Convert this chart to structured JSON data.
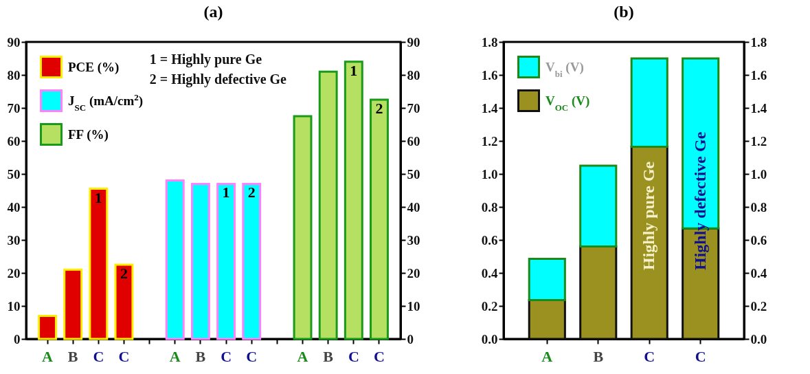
{
  "chart_data": [
    {
      "type": "bar",
      "title": "(a)",
      "categories": [
        "A",
        "B",
        "C",
        "C",
        null,
        "A",
        "B",
        "C",
        "C",
        null,
        "A",
        "B",
        "C",
        "C"
      ],
      "series": [
        {
          "name": "PCE (%)",
          "color": "#e00000",
          "values": [
            7,
            21,
            45.5,
            22.5,
            null,
            null,
            null,
            null,
            null,
            null,
            null,
            null,
            null,
            null
          ]
        },
        {
          "name": "J$_{SC}$ (mA/cm$^{2}$)",
          "color": "#00ffff",
          "values": [
            null,
            null,
            null,
            null,
            null,
            48,
            47,
            47,
            47,
            null,
            null,
            null,
            null,
            null
          ]
        },
        {
          "name": "FF (%)",
          "color": "#b5e061",
          "values": [
            null,
            null,
            null,
            null,
            null,
            null,
            null,
            null,
            null,
            null,
            67.5,
            81,
            84,
            72.5
          ]
        }
      ],
      "ylim": [
        0,
        90
      ],
      "yticks": [
        0,
        10,
        20,
        30,
        40,
        50,
        60,
        70,
        80,
        90
      ],
      "y2lim": [
        0,
        90
      ],
      "y2ticks": [
        0,
        10,
        20,
        30,
        40,
        50,
        60,
        70,
        80,
        90
      ],
      "legend": "top left",
      "annotations": [
        "1 = Highly pure Ge",
        "2 = Highly defective Ge",
        "1",
        "2",
        "1",
        "2",
        "1",
        "2"
      ]
    },
    {
      "type": "bar",
      "title": "(b)",
      "categories": [
        "A",
        "B",
        "C",
        "C"
      ],
      "stacked": true,
      "series": [
        {
          "name": "V$_{OC}$ (V)",
          "color": "#9a9120",
          "values": [
            0.235,
            0.56,
            1.165,
            0.67
          ]
        },
        {
          "name": "V$_{bi}$ (V)",
          "color": "#00ffff",
          "values": [
            0.25,
            0.49,
            0.535,
            1.03
          ]
        }
      ],
      "ylim": [
        0,
        1.8
      ],
      "yticks": [
        {
          "value": 0,
          "label": "0.0"
        },
        {
          "value": 0.2,
          "label": "0.2"
        },
        {
          "value": 0.4,
          "label": "0.4"
        },
        {
          "value": 0.6,
          "label": "0.6"
        },
        {
          "value": 0.8,
          "label": "0.8"
        },
        {
          "value": 1,
          "label": "1.0"
        },
        {
          "value": 1.2,
          "label": "1.2"
        },
        {
          "value": 1.4,
          "label": "1.4"
        },
        {
          "value": 1.6,
          "label": "1.6"
        },
        {
          "value": 1.8,
          "label": "1.8"
        }
      ],
      "y2lim": [
        0,
        1.8
      ],
      "y2ticks": [
        {
          "value": 0,
          "label": "0.0"
        },
        {
          "value": 0.2,
          "label": "0.2"
        },
        {
          "value": 0.4,
          "label": "0.4"
        },
        {
          "value": 0.6,
          "label": "0.6"
        },
        {
          "value": 0.8,
          "label": "0.8"
        },
        {
          "value": 1,
          "label": "1.0"
        },
        {
          "value": 1.2,
          "label": "1.2"
        },
        {
          "value": 1.4,
          "label": "1.4"
        },
        {
          "value": 1.6,
          "label": "1.6"
        },
        {
          "value": 1.8,
          "label": "1.8"
        }
      ],
      "legend": "top left",
      "annotations": [
        "Highly pure Ge",
        "Highly defective Ge"
      ]
    }
  ]
}
